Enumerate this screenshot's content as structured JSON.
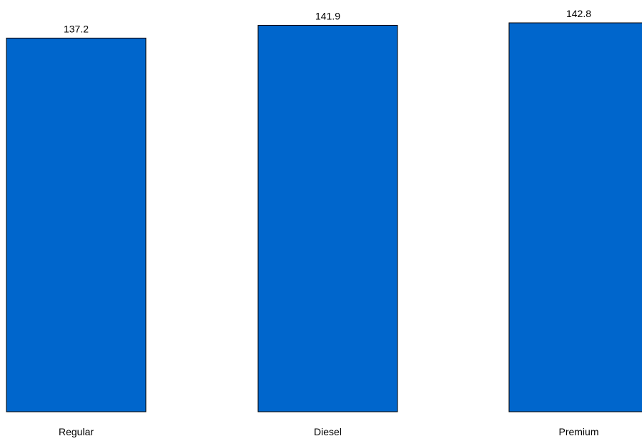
{
  "chart_data": {
    "type": "bar",
    "categories": [
      "Regular",
      "Diesel",
      "Premium"
    ],
    "values": [
      137.2,
      141.9,
      142.8
    ],
    "data_labels": [
      "137.2",
      "141.9",
      "142.8"
    ],
    "title": "",
    "xlabel": "",
    "ylabel": "",
    "ylim": [
      0,
      142.8
    ],
    "grid": false,
    "legend": "none",
    "bar_color": "#0066CC",
    "edge_color": "#000000"
  }
}
